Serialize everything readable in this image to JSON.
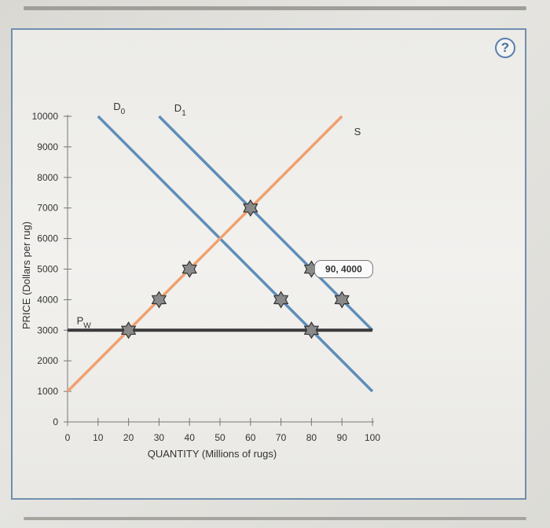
{
  "help_icon": "?",
  "chart_data": {
    "type": "line",
    "xlabel": "QUANTITY (Millions of rugs)",
    "ylabel": "PRICE (Dollars per rug)",
    "xlim": [
      0,
      100
    ],
    "ylim": [
      0,
      10000
    ],
    "x_ticks": [
      0,
      10,
      20,
      30,
      40,
      50,
      60,
      70,
      80,
      90,
      100
    ],
    "y_ticks": [
      0,
      1000,
      2000,
      3000,
      4000,
      5000,
      6000,
      7000,
      8000,
      9000,
      10000
    ],
    "series": [
      {
        "name": "D0",
        "label_main": "D",
        "label_sub": "0",
        "color": "#5f8db8",
        "points": [
          [
            10,
            10000
          ],
          [
            100,
            1000
          ]
        ]
      },
      {
        "name": "D1",
        "label_main": "D",
        "label_sub": "1",
        "color": "#5f8db8",
        "points": [
          [
            30,
            10000
          ],
          [
            100,
            3000
          ]
        ]
      },
      {
        "name": "S",
        "label_main": "S",
        "label_sub": "",
        "color": "#f0a070",
        "points": [
          [
            0,
            1000
          ],
          [
            90,
            10000
          ]
        ]
      },
      {
        "name": "Pw",
        "label_main": "P",
        "label_sub": "W",
        "color": "#3a3a3a",
        "points": [
          [
            0,
            3000
          ],
          [
            100,
            3000
          ]
        ]
      }
    ],
    "markers": [
      [
        20,
        3000
      ],
      [
        30,
        4000
      ],
      [
        40,
        5000
      ],
      [
        60,
        7000
      ],
      [
        70,
        4000
      ],
      [
        80,
        5000
      ],
      [
        80,
        3000
      ],
      [
        90,
        4000
      ]
    ],
    "marker_color": "#8a8a8a",
    "annotation": {
      "text": "90, 4000",
      "x": 90,
      "y": 4000
    }
  }
}
